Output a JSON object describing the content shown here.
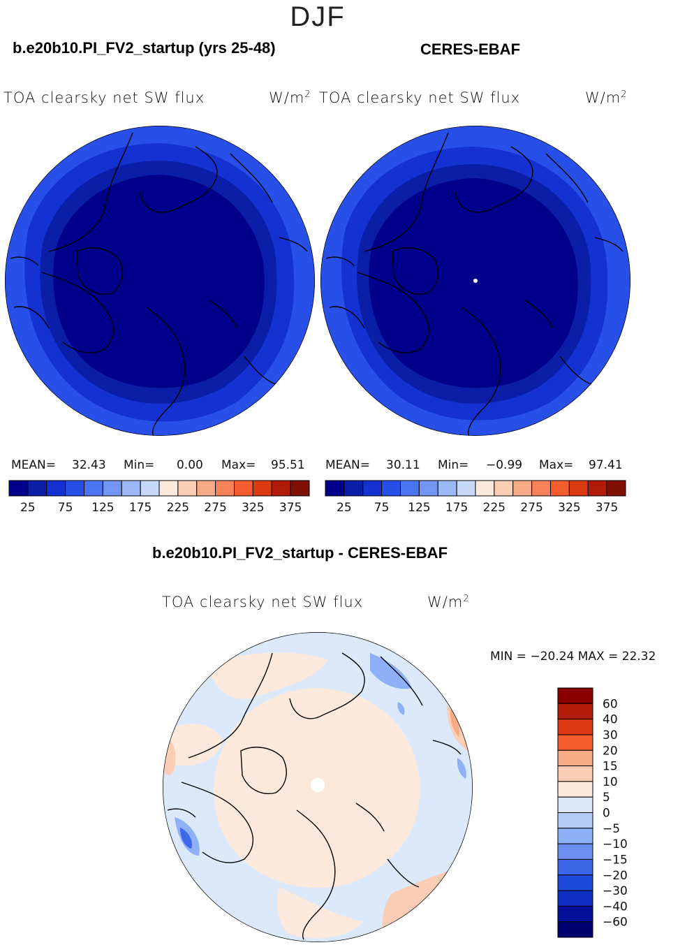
{
  "figure": {
    "season": "DJF",
    "variable": "TOA clearsky net SW flux",
    "units_base": "W/m",
    "units_exp": "2"
  },
  "panels": {
    "model": {
      "title": "b.e20b10.PI_FV2_startup (yrs 25-48)",
      "mean_label": "MEAN=",
      "mean": "32.43",
      "min_label": "Min=",
      "min": "0.00",
      "max_label": "Max=",
      "max": "95.51"
    },
    "obs": {
      "title": "CERES-EBAF",
      "mean_label": "MEAN=",
      "mean": "30.11",
      "min_label": "Min=",
      "min": "−0.99",
      "max_label": "Max=",
      "max": "97.41"
    },
    "diff": {
      "title": "b.e20b10.PI_FV2_startup - CERES-EBAF",
      "minmax": "MIN = −20.24 MAX =   22.32"
    }
  },
  "colorbar_main": {
    "colors": [
      "#00008a",
      "#0a1ea8",
      "#1432d2",
      "#2850e8",
      "#4a74f0",
      "#7396f4",
      "#9cb8f6",
      "#c5d8f8",
      "#fde9dc",
      "#fbcdb5",
      "#f8aa86",
      "#f7825a",
      "#f45c2e",
      "#dc3a12",
      "#b01c0a",
      "#801000"
    ],
    "tick_labels": [
      "25",
      "75",
      "125",
      "175",
      "225",
      "275",
      "325",
      "375"
    ]
  },
  "colorbar_diff": {
    "colors": [
      "#8a0000",
      "#b41c0a",
      "#dc3a12",
      "#f45c2e",
      "#f8aa86",
      "#fbcdb5",
      "#fde9dc",
      "#dbe9fb",
      "#b5ccf9",
      "#8eb0f7",
      "#6a8ff1",
      "#3e68ea",
      "#1f4bd8",
      "#0f30c0",
      "#060f98"
    ],
    "tick_labels": [
      "60",
      "40",
      "30",
      "20",
      "15",
      "10",
      "5",
      "0",
      "−5",
      "−10",
      "−15",
      "−20",
      "−30",
      "−40",
      "−60"
    ]
  },
  "map_colors": {
    "outer": "#2850e8",
    "ring2": "#1432d2",
    "ring3": "#0a1ea8",
    "center": "#00008a",
    "diff_base": "#dbe9fb",
    "diff_warm": "#fde9dc",
    "diff_pos": "#fbcdb5",
    "diff_pos2": "#f8aa86",
    "diff_neg": "#8eb0f7",
    "diff_neg2": "#3e68ea"
  }
}
